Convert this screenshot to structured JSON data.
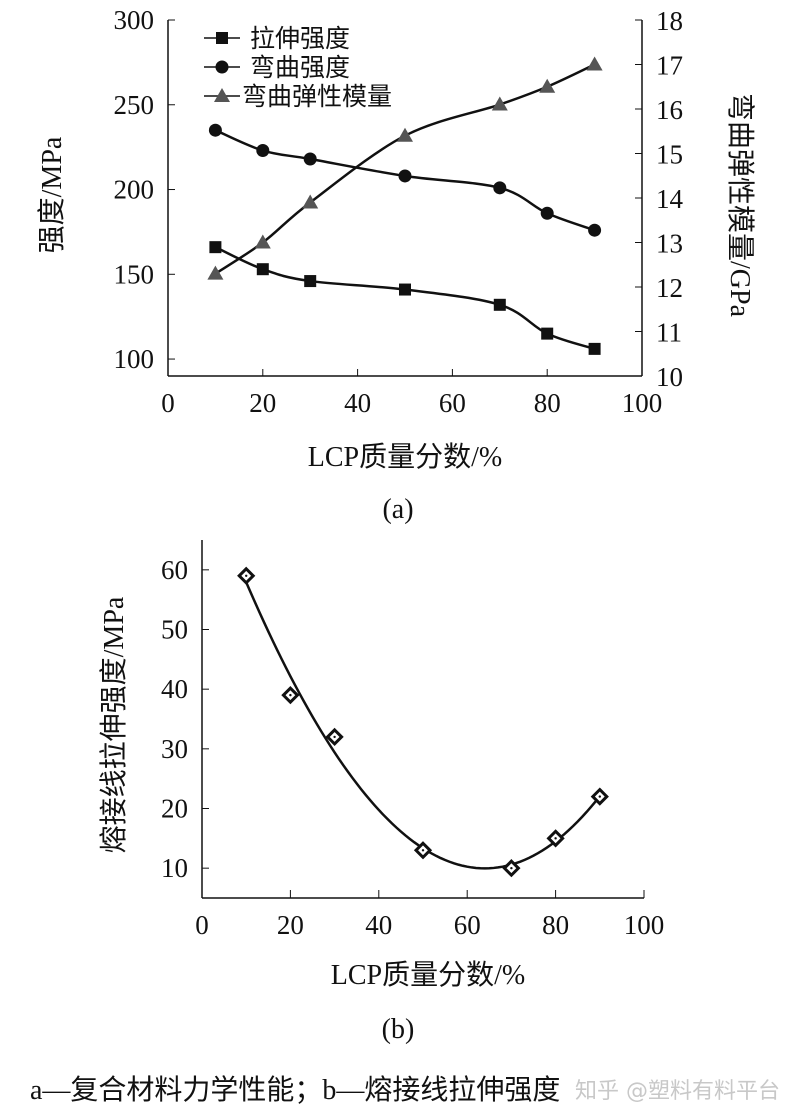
{
  "chart_data": [
    {
      "type": "line",
      "panel_label": "(a)",
      "xlabel": "LCP质量分数/%",
      "ylabel": "强度/MPa",
      "y2label": "弯曲弹性模量/GPa",
      "xlim": [
        0,
        100
      ],
      "ylim": [
        90,
        300
      ],
      "y2lim": [
        10,
        18
      ],
      "xticks": [
        0,
        20,
        40,
        60,
        80,
        100
      ],
      "yticks": [
        100,
        150,
        200,
        250,
        300
      ],
      "y2ticks": [
        10,
        11,
        12,
        13,
        14,
        15,
        16,
        17,
        18
      ],
      "grid": false,
      "legend_position": "top-left",
      "x": [
        10,
        20,
        30,
        50,
        70,
        80,
        90
      ],
      "series": [
        {
          "name": "拉伸强度",
          "axis": "left",
          "marker": "square",
          "values": [
            166,
            153,
            146,
            141,
            132,
            115,
            106
          ]
        },
        {
          "name": "弯曲强度",
          "axis": "left",
          "marker": "circle",
          "values": [
            235,
            223,
            218,
            208,
            201,
            186,
            176
          ]
        },
        {
          "name": "弯曲弹性模量",
          "axis": "right",
          "marker": "triangle",
          "values": [
            12.3,
            13.0,
            13.9,
            15.4,
            16.1,
            16.5,
            17.0
          ]
        }
      ]
    },
    {
      "type": "scatter",
      "panel_label": "(b)",
      "xlabel": "LCP质量分数/%",
      "ylabel": "熔接线拉伸强度/MPa",
      "xlim": [
        0,
        100
      ],
      "ylim": [
        5,
        65
      ],
      "xticks": [
        0,
        20,
        40,
        60,
        80,
        100
      ],
      "yticks": [
        10,
        20,
        30,
        40,
        50,
        60
      ],
      "grid": false,
      "marker": "diamond",
      "trendline": "polynomial",
      "x": [
        10,
        20,
        30,
        50,
        70,
        80,
        90
      ],
      "values": [
        59,
        39,
        32,
        13,
        10,
        15,
        22
      ]
    }
  ],
  "caption": "a—复合材料力学性能；b—熔接线拉伸强度",
  "watermark": "知乎 @塑料有料平台",
  "colors": {
    "ink": "#111111",
    "triangle": "#555555",
    "watermark": "#c8c8c8"
  }
}
